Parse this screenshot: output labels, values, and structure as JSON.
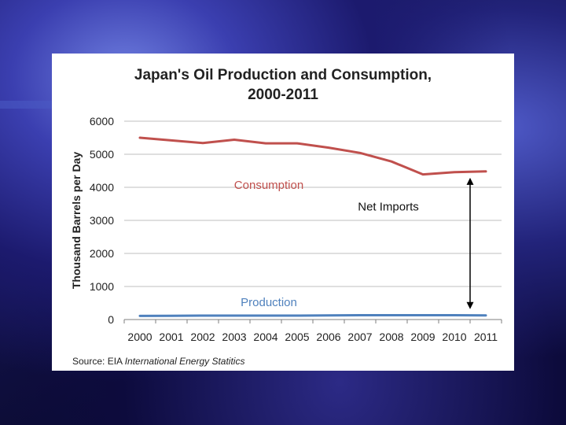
{
  "slide": {
    "accent_color": "#4a5bc4"
  },
  "source": {
    "prefix": "Source: EIA",
    "title": "International Energy Statitics"
  },
  "chart_data": {
    "type": "line",
    "title": "Japan's Oil Production and Consumption,\n2000-2011",
    "xlabel": "",
    "ylabel": "Thousand Barrels per Day",
    "x": [
      2000,
      2001,
      2002,
      2003,
      2004,
      2005,
      2006,
      2007,
      2008,
      2009,
      2010,
      2011
    ],
    "ylim": [
      0,
      6000
    ],
    "yticks": [
      0,
      1000,
      2000,
      3000,
      4000,
      5000,
      6000
    ],
    "grid": "horizontal",
    "series": [
      {
        "name": "Consumption",
        "color": "#c0504d",
        "values": [
          5500,
          5420,
          5340,
          5440,
          5330,
          5330,
          5200,
          5040,
          4780,
          4390,
          4460,
          4480
        ]
      },
      {
        "name": "Production",
        "color": "#4f81bd",
        "values": [
          110,
          115,
          120,
          120,
          120,
          120,
          125,
          130,
          130,
          130,
          130,
          125
        ]
      }
    ],
    "annotations": [
      {
        "text": "Net Imports",
        "type": "double-arrow",
        "x": 2010.5,
        "from": 4480,
        "to": 125
      }
    ]
  }
}
